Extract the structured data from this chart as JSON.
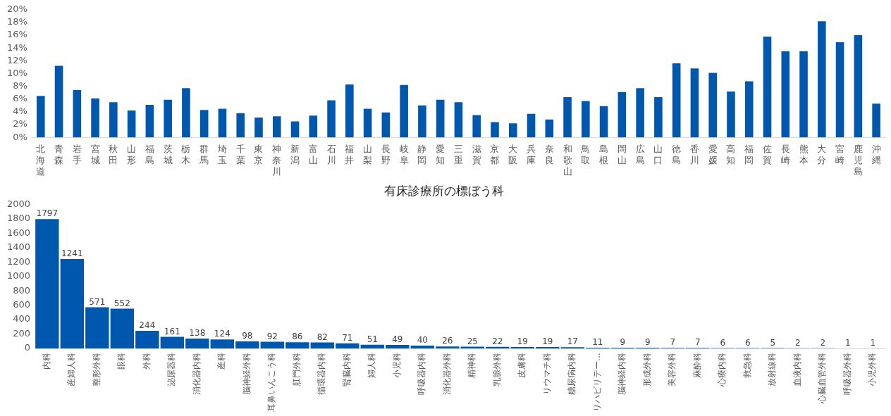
{
  "chart_data": [
    {
      "type": "bar",
      "categories": [
        "北海道",
        "青森",
        "岩手",
        "宮城",
        "秋田",
        "山形",
        "福島",
        "茨城",
        "栃木",
        "群馬",
        "埼玉",
        "千葉",
        "東京",
        "神奈川",
        "新潟",
        "富山",
        "石川",
        "福井",
        "山梨",
        "長野",
        "岐阜",
        "静岡",
        "愛知",
        "三重",
        "滋賀",
        "京都",
        "大阪",
        "兵庫",
        "奈良",
        "和歌山",
        "鳥取",
        "島根",
        "岡山",
        "広島",
        "山口",
        "徳島",
        "香川",
        "愛媛",
        "高知",
        "福岡",
        "佐賀",
        "長崎",
        "熊本",
        "大分",
        "宮崎",
        "鹿児島",
        "沖縄"
      ],
      "values": [
        6.5,
        11.2,
        7.4,
        6.1,
        5.5,
        4.2,
        5.1,
        5.9,
        7.7,
        4.3,
        4.5,
        3.8,
        3.1,
        3.3,
        2.5,
        3.4,
        5.8,
        8.3,
        4.5,
        3.9,
        8.2,
        5.0,
        5.9,
        5.5,
        3.5,
        2.4,
        2.2,
        3.7,
        2.8,
        6.3,
        5.7,
        4.9,
        7.1,
        7.7,
        6.3,
        11.6,
        10.8,
        10.1,
        7.2,
        8.8,
        15.8,
        13.5,
        13.5,
        18.2,
        14.9,
        16.0,
        5.3
      ],
      "color": "#0058ae",
      "ylim": [
        0,
        20
      ],
      "yticks": [
        {
          "value": 0,
          "label": "0%"
        },
        {
          "value": 2,
          "label": "2%"
        },
        {
          "value": 4,
          "label": "4%"
        },
        {
          "value": 6,
          "label": "6%"
        },
        {
          "value": 8,
          "label": "8%"
        },
        {
          "value": 10,
          "label": "10%"
        },
        {
          "value": 12,
          "label": "12%"
        },
        {
          "value": 14,
          "label": "14%"
        },
        {
          "value": 16,
          "label": "16%"
        },
        {
          "value": 18,
          "label": "18%"
        },
        {
          "value": 20,
          "label": "20%"
        }
      ],
      "grid": false,
      "legend": false
    },
    {
      "type": "bar",
      "title": "有床診療所の標ぼう科",
      "categories": [
        "内科",
        "産婦人科",
        "整形外科",
        "眼科",
        "外科",
        "泌尿器科",
        "消化器内科",
        "産科",
        "脳神経外科",
        "耳鼻いんこう科",
        "肛門外科",
        "循環器内科",
        "腎臓内科",
        "婦人科",
        "小児科",
        "呼吸器内科",
        "消化器外科",
        "精神科",
        "乳腺外科",
        "皮膚科",
        "リウマチ科",
        "糖尿病内科",
        "リハビリテー…",
        "脳神経内科",
        "形成外科",
        "美容外科",
        "麻酔科",
        "心療内科",
        "救急科",
        "放射線科",
        "血液内科",
        "心臓血管外科",
        "呼吸器外科",
        "小児外科"
      ],
      "values": [
        1797,
        1241,
        571,
        552,
        244,
        161,
        138,
        124,
        98,
        92,
        86,
        82,
        71,
        51,
        49,
        40,
        26,
        25,
        22,
        19,
        19,
        17,
        11,
        9,
        9,
        7,
        7,
        6,
        6,
        5,
        2,
        2,
        1,
        1
      ],
      "color": "#0058ae",
      "ylim": [
        0,
        2000
      ],
      "yticks": [
        0,
        200,
        400,
        600,
        800,
        1000,
        1200,
        1400,
        1600,
        1800,
        2000
      ],
      "grid": false,
      "legend": false,
      "data_labels": true
    }
  ]
}
